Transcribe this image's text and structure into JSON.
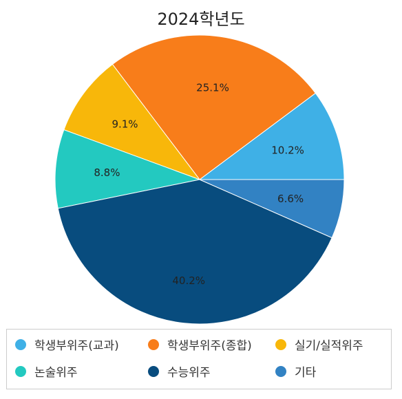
{
  "chart_data": {
    "type": "pie",
    "title": "2024학년도",
    "slices": [
      {
        "name": "학생부위주(교과)",
        "value": 10.2,
        "label": "10.2%",
        "color": "#3fb0e6"
      },
      {
        "name": "학생부위주(종합)",
        "value": 25.1,
        "label": "25.1%",
        "color": "#f87d1a"
      },
      {
        "name": "실기/실적위주",
        "value": 9.1,
        "label": "9.1%",
        "color": "#f8b70a"
      },
      {
        "name": "논술위주",
        "value": 8.8,
        "label": "8.8%",
        "color": "#23c9c0"
      },
      {
        "name": "수능위주",
        "value": 40.2,
        "label": "40.2%",
        "color": "#084c7e"
      },
      {
        "name": "기타",
        "value": 6.6,
        "label": "6.6%",
        "color": "#3282c3"
      }
    ],
    "start_angle_deg": 0,
    "direction": "counterclockwise",
    "legend_position": "bottom"
  }
}
